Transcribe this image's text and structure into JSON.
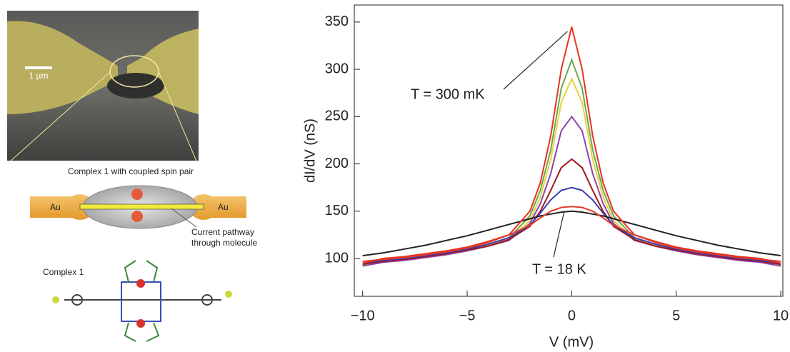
{
  "left_panel": {
    "scale_bar": "1 µm",
    "schematic_title": "Complex 1 with coupled spin pair",
    "electrode_left": "Au",
    "electrode_right": "Au",
    "pathway_label": [
      "Current pathway",
      "through molecule"
    ],
    "molecule_label": "Complex 1"
  },
  "chart_data": {
    "type": "line",
    "x_label": "V (mV)",
    "y_label": "dI/dV (nS)",
    "annotations": [
      "T = 300 mK",
      "T = 18 K"
    ],
    "x": [
      -10,
      -9,
      -8,
      -7,
      -6,
      -5,
      -4,
      -3,
      -2,
      -1.5,
      -1,
      -0.5,
      0,
      0.5,
      1,
      1.5,
      2,
      3,
      4,
      5,
      6,
      7,
      8,
      9,
      10
    ],
    "series": [
      {
        "color": "#6aa84f",
        "values": [
          93,
          98,
          100,
          103,
          106,
          110,
          115,
          122,
          145,
          172,
          215,
          280,
          310,
          280,
          215,
          172,
          145,
          122,
          115,
          110,
          106,
          103,
          100,
          98,
          93
        ]
      },
      {
        "color": "#e6d23a",
        "values": [
          92,
          97,
          99,
          102,
          105,
          109,
          114,
          120,
          140,
          165,
          205,
          265,
          290,
          265,
          205,
          165,
          140,
          120,
          114,
          109,
          105,
          102,
          99,
          97,
          92
        ]
      },
      {
        "color": "#8e44ad",
        "values": [
          92,
          96,
          98,
          101,
          104,
          108,
          113,
          119,
          137,
          158,
          190,
          235,
          250,
          235,
          190,
          158,
          137,
          119,
          113,
          108,
          104,
          101,
          98,
          96,
          92
        ]
      },
      {
        "color": "#a01818",
        "values": [
          94,
          97,
          99,
          102,
          105,
          109,
          113,
          120,
          134,
          150,
          172,
          196,
          205,
          196,
          172,
          150,
          134,
          120,
          113,
          109,
          105,
          102,
          99,
          97,
          94
        ]
      },
      {
        "color": "#3a3ab0",
        "values": [
          95,
          98,
          100,
          103,
          106,
          110,
          115,
          122,
          135,
          148,
          162,
          172,
          175,
          172,
          162,
          148,
          135,
          122,
          115,
          110,
          106,
          103,
          100,
          98,
          95
        ]
      },
      {
        "color": "#222222",
        "values": [
          103,
          106,
          110,
          114,
          119,
          124,
          130,
          136,
          142,
          145,
          147,
          149,
          150,
          149,
          147,
          145,
          142,
          136,
          130,
          124,
          119,
          114,
          110,
          106,
          103
        ]
      },
      {
        "color": "#e53b2c",
        "values": [
          97,
          99,
          101,
          104,
          107,
          111,
          117,
          125,
          135,
          143,
          150,
          154,
          155,
          154,
          150,
          143,
          135,
          125,
          117,
          111,
          107,
          104,
          101,
          99,
          97
        ]
      },
      {
        "color": "#e8321e",
        "values": [
          95,
          100,
          102,
          105,
          108,
          112,
          118,
          125,
          150,
          180,
          230,
          300,
          345,
          300,
          230,
          180,
          150,
          125,
          118,
          112,
          108,
          105,
          102,
          100,
          95
        ]
      }
    ],
    "xlim": [
      -10.4,
      10.1
    ],
    "xticks": [
      {
        "value": -10,
        "label": "−10"
      },
      {
        "value": -5,
        "label": "−5"
      },
      0,
      5,
      10
    ],
    "ylim": [
      60,
      368
    ],
    "yticks": [
      100,
      150,
      200,
      250,
      300,
      350
    ],
    "grid": false
  }
}
